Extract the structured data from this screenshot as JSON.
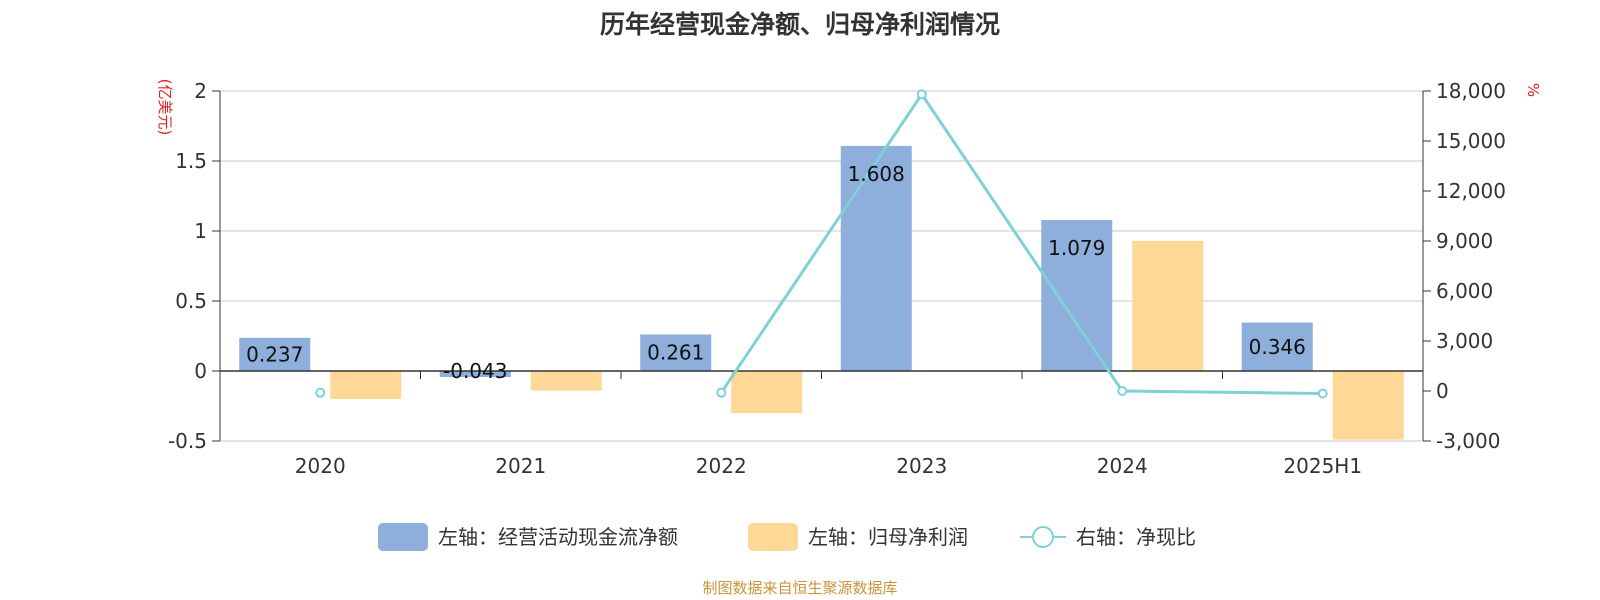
{
  "chart_data": {
    "type": "bar",
    "title": "历年经营现金净额、归母净利润情况",
    "categories": [
      "2020",
      "2021",
      "2022",
      "2023",
      "2024",
      "2025H1"
    ],
    "left_axis": {
      "unit": "(亿美元)",
      "ylim": [
        -0.5,
        2
      ],
      "ticks": [
        2,
        1.5,
        1,
        0.5,
        0,
        -0.5
      ],
      "tick_labels": [
        "2",
        "1.5",
        "1",
        "0.5",
        "0",
        "-0.5"
      ]
    },
    "right_axis": {
      "unit": "%",
      "ylim": [
        -3000,
        18000
      ],
      "ticks": [
        18000,
        15000,
        12000,
        9000,
        6000,
        3000,
        0,
        -3000
      ],
      "tick_labels": [
        "18,000",
        "15,000",
        "12,000",
        "9,000",
        "6,000",
        "3,000",
        "0",
        "-3,000"
      ]
    },
    "series": [
      {
        "name": "左轴：经营活动现金流净额",
        "type": "bar",
        "axis": "left",
        "color": "#8eaedb",
        "values": [
          0.237,
          -0.043,
          0.261,
          1.608,
          1.079,
          0.346
        ],
        "labels": [
          "0.237",
          "-0.043",
          "0.261",
          "1.608",
          "1.079",
          "0.346"
        ]
      },
      {
        "name": "左轴：归母净利润",
        "type": "bar",
        "axis": "left",
        "color": "#ffd796",
        "values": [
          -0.2,
          -0.14,
          -0.3,
          0.005,
          0.93,
          -0.49
        ]
      },
      {
        "name": "右轴：净现比",
        "type": "line",
        "axis": "right",
        "color": "#7fd1d7",
        "values": [
          -100,
          null,
          -100,
          17800,
          0,
          -150
        ]
      }
    ],
    "grid": true,
    "legend_position": "bottom",
    "source": "制图数据来自恒生聚源数据库"
  }
}
